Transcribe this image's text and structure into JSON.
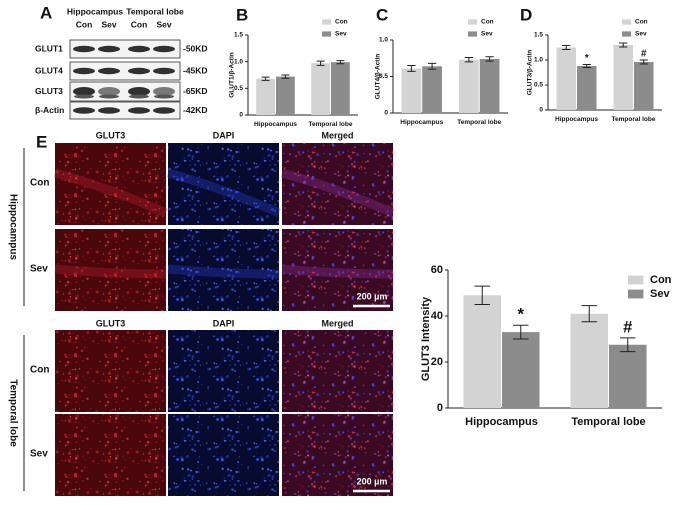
{
  "panel_labels": [
    "A",
    "B",
    "C",
    "D",
    "E"
  ],
  "blot": {
    "regions": [
      "Hippocampus",
      "Temporal lobe"
    ],
    "groups": [
      "Con",
      "Sev",
      "Con",
      "Sev"
    ],
    "proteins": [
      "GLUT1",
      "GLUT4",
      "GLUT3",
      "β-Actin"
    ],
    "sizes": [
      "-50KD",
      "-45KD",
      "-65KD",
      "-42KD"
    ]
  },
  "images": {
    "sections": [
      {
        "region": "Hippocampus",
        "columns": [
          "GLUT3",
          "DAPI",
          "Merged"
        ],
        "rows": [
          "Con",
          "Sev"
        ],
        "scale_bar": "200 µm"
      },
      {
        "region": "Temporal lobe",
        "columns": [
          "GLUT3",
          "DAPI",
          "Merged"
        ],
        "rows": [
          "Con",
          "Sev"
        ],
        "scale_bar": "200 µm"
      }
    ]
  },
  "chart_data": [
    {
      "type": "bar",
      "y_label": "GLUT1/β-Actin",
      "categories": [
        "Hippocampus",
        "Temporal lobe"
      ],
      "series": [
        {
          "name": "Con",
          "color": "#d3d3d3",
          "values": [
            0.68,
            0.97
          ],
          "errors": [
            0.03,
            0.04
          ]
        },
        {
          "name": "Sev",
          "color": "#8c8c8c",
          "values": [
            0.72,
            0.99
          ],
          "errors": [
            0.03,
            0.03
          ]
        }
      ],
      "ylim": [
        0,
        1.5
      ],
      "yticks": [
        0,
        0.5,
        {
          "value": 1,
          "label": "1.0"
        },
        1.5
      ]
    },
    {
      "type": "bar",
      "y_label": "GLUT4/β-Actin",
      "categories": [
        "Hippocampus",
        "Temporal lobe"
      ],
      "series": [
        {
          "name": "Con",
          "color": "#d3d3d3",
          "values": [
            0.61,
            0.73
          ],
          "errors": [
            0.04,
            0.03
          ]
        },
        {
          "name": "Sev",
          "color": "#8c8c8c",
          "values": [
            0.64,
            0.74
          ],
          "errors": [
            0.04,
            0.03
          ]
        }
      ],
      "ylim": [
        0,
        1
      ],
      "yticks": [
        0,
        0.5,
        {
          "value": 1,
          "label": "1.0"
        }
      ]
    },
    {
      "type": "bar",
      "y_label": "GLUT3/β-Actin",
      "categories": [
        "Hippocampus",
        "Temporal lobe"
      ],
      "series": [
        {
          "name": "Con",
          "color": "#d3d3d3",
          "values": [
            1.25,
            1.3
          ],
          "errors": [
            0.04,
            0.04
          ]
        },
        {
          "name": "Sev",
          "color": "#8c8c8c",
          "values": [
            0.88,
            0.96
          ],
          "errors": [
            0.03,
            0.04
          ]
        }
      ],
      "annotations": [
        "*",
        "#"
      ],
      "ylim": [
        0,
        1.5
      ],
      "yticks": [
        0,
        0.5,
        {
          "value": 1,
          "label": "1.0"
        },
        1.5
      ]
    },
    {
      "type": "bar",
      "y_label": "GLUT3 Intensity",
      "categories": [
        "Hippocampus",
        "Temporal lobe"
      ],
      "series": [
        {
          "name": "Con",
          "color": "#d3d3d3",
          "values": [
            49,
            41
          ],
          "errors": [
            4,
            3.5
          ]
        },
        {
          "name": "Sev",
          "color": "#8c8c8c",
          "values": [
            33,
            27.5
          ],
          "errors": [
            3,
            3
          ]
        }
      ],
      "annotations": [
        "*",
        "#"
      ],
      "ylim": [
        0,
        60
      ],
      "yticks": [
        0,
        20,
        40,
        60
      ]
    }
  ]
}
